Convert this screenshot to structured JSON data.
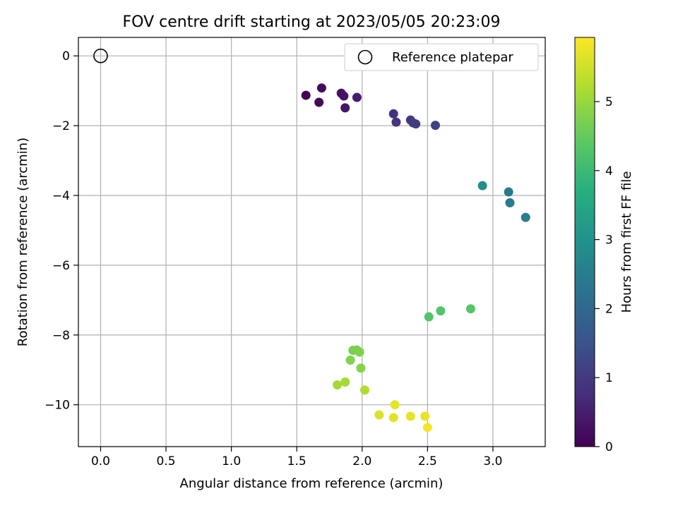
{
  "chart_data": {
    "type": "scatter",
    "title": "FOV centre drift starting at 2023/05/05 20:23:09",
    "xlabel": "Angular distance from reference (arcmin)",
    "ylabel": "Rotation from reference (arcmin)",
    "xlim": [
      -0.17,
      3.4
    ],
    "ylim": [
      -11.2,
      0.53
    ],
    "xticks": [
      0.0,
      0.5,
      1.0,
      1.5,
      2.0,
      2.5,
      3.0
    ],
    "xtick_labels": [
      "0.0",
      "0.5",
      "1.0",
      "1.5",
      "2.0",
      "2.5",
      "3.0"
    ],
    "yticks": [
      0,
      -2,
      -4,
      -6,
      -8,
      -10
    ],
    "ytick_labels": [
      "0",
      "−2",
      "−4",
      "−6",
      "−8",
      "−10"
    ],
    "grid": true,
    "legend": {
      "placement": "top-right",
      "entries": [
        "Reference platepar"
      ]
    },
    "reference_point": {
      "label": "Reference platepar",
      "x": 0.0,
      "y": 0.0
    },
    "colorbar": {
      "label": "Hours from first FF file",
      "range": [
        0,
        5.93
      ],
      "ticks": [
        0,
        1,
        2,
        3,
        4,
        5
      ],
      "tick_labels": [
        "0",
        "1",
        "2",
        "3",
        "4",
        "5"
      ],
      "colormap": "viridis"
    },
    "series": [
      {
        "points": [
          {
            "x": 1.57,
            "y": -1.13,
            "c": 0.0
          },
          {
            "x": 1.67,
            "y": -1.33,
            "c": 0.1
          },
          {
            "x": 1.69,
            "y": -0.92,
            "c": 0.15
          },
          {
            "x": 1.84,
            "y": -1.07,
            "c": 0.25
          },
          {
            "x": 1.86,
            "y": -1.15,
            "c": 0.3
          },
          {
            "x": 1.87,
            "y": -1.49,
            "c": 0.35
          },
          {
            "x": 1.96,
            "y": -1.19,
            "c": 0.45
          },
          {
            "x": 2.24,
            "y": -1.66,
            "c": 0.85
          },
          {
            "x": 2.26,
            "y": -1.9,
            "c": 0.9
          },
          {
            "x": 2.37,
            "y": -1.84,
            "c": 0.95
          },
          {
            "x": 2.39,
            "y": -1.92,
            "c": 1.0
          },
          {
            "x": 2.41,
            "y": -1.95,
            "c": 1.05
          },
          {
            "x": 2.56,
            "y": -1.99,
            "c": 1.15
          },
          {
            "x": 2.92,
            "y": -3.72,
            "c": 2.85
          },
          {
            "x": 3.12,
            "y": -3.9,
            "c": 2.4
          },
          {
            "x": 3.13,
            "y": -4.21,
            "c": 2.45
          },
          {
            "x": 3.25,
            "y": -4.63,
            "c": 2.5
          },
          {
            "x": 2.51,
            "y": -7.48,
            "c": 4.3
          },
          {
            "x": 2.6,
            "y": -7.31,
            "c": 4.3
          },
          {
            "x": 2.83,
            "y": -7.25,
            "c": 4.35
          },
          {
            "x": 1.93,
            "y": -8.44,
            "c": 4.7
          },
          {
            "x": 1.96,
            "y": -8.43,
            "c": 4.72
          },
          {
            "x": 1.98,
            "y": -8.49,
            "c": 4.75
          },
          {
            "x": 1.91,
            "y": -8.72,
            "c": 4.78
          },
          {
            "x": 1.99,
            "y": -8.95,
            "c": 4.82
          },
          {
            "x": 1.81,
            "y": -9.43,
            "c": 5.1
          },
          {
            "x": 1.87,
            "y": -9.35,
            "c": 5.12
          },
          {
            "x": 2.02,
            "y": -9.58,
            "c": 5.2
          },
          {
            "x": 2.25,
            "y": -10.0,
            "c": 5.7
          },
          {
            "x": 2.13,
            "y": -10.29,
            "c": 5.6
          },
          {
            "x": 2.24,
            "y": -10.37,
            "c": 5.65
          },
          {
            "x": 2.37,
            "y": -10.33,
            "c": 5.7
          },
          {
            "x": 2.48,
            "y": -10.33,
            "c": 5.75
          },
          {
            "x": 2.5,
            "y": -10.65,
            "c": 5.85
          }
        ]
      }
    ]
  }
}
